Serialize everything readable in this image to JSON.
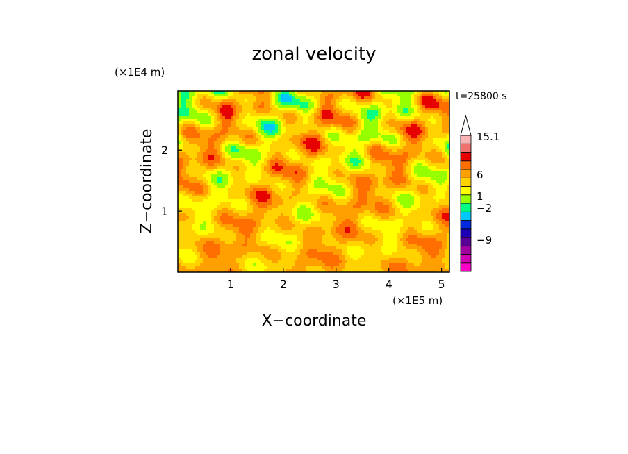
{
  "chart_data": {
    "type": "heatmap",
    "title": "zonal velocity",
    "xlabel": "X−coordinate",
    "ylabel": "Z−coordinate",
    "x_scale_label": "(×1E5 m)",
    "y_scale_label": "(×1E4 m)",
    "time_label": "t=25800 s",
    "xlim": [
      0,
      5.15
    ],
    "ylim": [
      0,
      2.97
    ],
    "x_ticks": [
      1,
      2,
      3,
      4,
      5
    ],
    "y_ticks": [
      1,
      2
    ],
    "x_tick_labels": [
      "1",
      "2",
      "3",
      "4",
      "5"
    ],
    "y_tick_labels": [
      "1",
      "2"
    ],
    "colorbar": {
      "levels": [
        {
          "color": "#ff00c8"
        },
        {
          "color": "#d200b4"
        },
        {
          "color": "#a000a0"
        },
        {
          "color": "#5a0096"
        },
        {
          "color": "#1e00b4"
        },
        {
          "color": "#0028dc"
        },
        {
          "color": "#00c8ff"
        },
        {
          "color": "#00ff82"
        },
        {
          "color": "#96ff00"
        },
        {
          "color": "#ffff00"
        },
        {
          "color": "#ffd200"
        },
        {
          "color": "#ffa000"
        },
        {
          "color": "#ff6e00"
        },
        {
          "color": "#e60000"
        },
        {
          "color": "#f07070"
        },
        {
          "color": "#f8b4b4"
        }
      ],
      "labels": [
        "15.1",
        "6",
        "1",
        "−2",
        "−9"
      ],
      "label_values": [
        15.1,
        6,
        1,
        -2,
        -9
      ],
      "overflow_arrow": true
    }
  }
}
